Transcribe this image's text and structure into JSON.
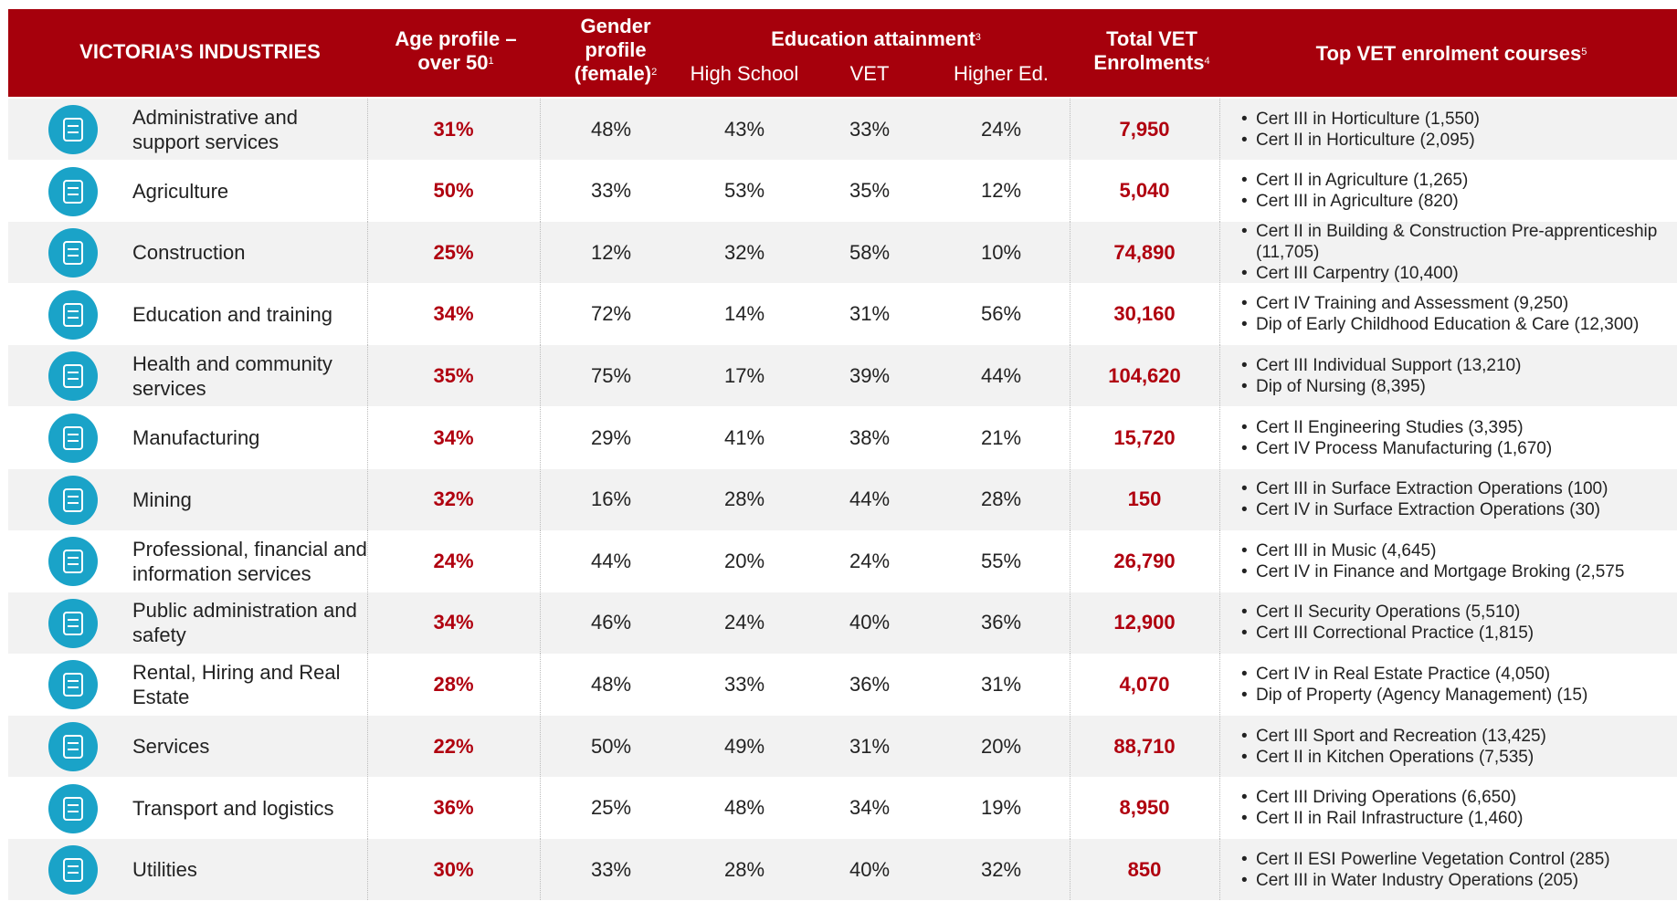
{
  "header": {
    "industries": "VICTORIA’S INDUSTRIES",
    "age": "Age profile – over 50",
    "age_note": "1",
    "gender": "Gender profile (female)",
    "gender_note": "2",
    "education": "Education attainment",
    "education_note": "3",
    "high_school": "High School",
    "vet": "VET",
    "higher_ed": "Higher Ed.",
    "total": "Total VET Enrolments",
    "total_note": "4",
    "courses": "Top VET enrolment courses",
    "courses_note": "5"
  },
  "rows": [
    {
      "industry": "Administrative and support services",
      "age": "31%",
      "gender": "48%",
      "high_school": "43%",
      "vet": "33%",
      "higher_ed": "24%",
      "total": "7,950",
      "courses": [
        "Cert III in Horticulture (1,550)",
        "Cert II in Horticulture (2,095)"
      ]
    },
    {
      "industry": "Agriculture",
      "age": "50%",
      "gender": "33%",
      "high_school": "53%",
      "vet": "35%",
      "higher_ed": "12%",
      "total": "5,040",
      "courses": [
        "Cert II in Agriculture (1,265)",
        "Cert III in Agriculture (820)"
      ]
    },
    {
      "industry": "Construction",
      "age": "25%",
      "gender": "12%",
      "high_school": "32%",
      "vet": "58%",
      "higher_ed": "10%",
      "total": "74,890",
      "courses": [
        "Cert II in Building & Construction Pre-apprenticeship (11,705)",
        "Cert III Carpentry (10,400)"
      ]
    },
    {
      "industry": "Education and training",
      "age": "34%",
      "gender": "72%",
      "high_school": "14%",
      "vet": "31%",
      "higher_ed": "56%",
      "total": "30,160",
      "courses": [
        "Cert IV Training and Assessment (9,250)",
        "Dip of Early Childhood Education & Care (12,300)"
      ]
    },
    {
      "industry": "Health and community services",
      "age": "35%",
      "gender": "75%",
      "high_school": "17%",
      "vet": "39%",
      "higher_ed": "44%",
      "total": "104,620",
      "courses": [
        "Cert III Individual Support (13,210)",
        "Dip of Nursing (8,395)"
      ]
    },
    {
      "industry": "Manufacturing",
      "age": "34%",
      "gender": "29%",
      "high_school": "41%",
      "vet": "38%",
      "higher_ed": "21%",
      "total": "15,720",
      "courses": [
        "Cert II Engineering Studies (3,395)",
        "Cert IV Process Manufacturing (1,670)"
      ]
    },
    {
      "industry": "Mining",
      "age": "32%",
      "gender": "16%",
      "high_school": "28%",
      "vet": "44%",
      "higher_ed": "28%",
      "total": "150",
      "courses": [
        "Cert III in Surface Extraction Operations (100)",
        "Cert IV in Surface Extraction Operations (30)"
      ]
    },
    {
      "industry": "Professional, financial and information services",
      "age": "24%",
      "gender": "44%",
      "high_school": "20%",
      "vet": "24%",
      "higher_ed": "55%",
      "total": "26,790",
      "courses": [
        "Cert III in Music (4,645)",
        "Cert IV in Finance and Mortgage Broking (2,575"
      ]
    },
    {
      "industry": "Public administration and safety",
      "age": "34%",
      "gender": "46%",
      "high_school": "24%",
      "vet": "40%",
      "higher_ed": "36%",
      "total": "12,900",
      "courses": [
        "Cert II Security Operations (5,510)",
        "Cert III Correctional Practice (1,815)"
      ]
    },
    {
      "industry": "Rental, Hiring and Real Estate",
      "age": "28%",
      "gender": "48%",
      "high_school": "33%",
      "vet": "36%",
      "higher_ed": "31%",
      "total": "4,070",
      "courses": [
        "Cert IV in Real Estate Practice (4,050)",
        "Dip of Property (Agency Management) (15)"
      ]
    },
    {
      "industry": "Services",
      "age": "22%",
      "gender": "50%",
      "high_school": "49%",
      "vet": "31%",
      "higher_ed": "20%",
      "total": "88,710",
      "courses": [
        "Cert III Sport and Recreation (13,425)",
        "Cert II in Kitchen Operations (7,535)"
      ]
    },
    {
      "industry": "Transport and logistics",
      "age": "36%",
      "gender": "25%",
      "high_school": "48%",
      "vet": "34%",
      "higher_ed": "19%",
      "total": "8,950",
      "courses": [
        "Cert III Driving Operations (6,650)",
        "Cert II in Rail Infrastructure (1,460)"
      ]
    },
    {
      "industry": "Utilities",
      "age": "30%",
      "gender": "33%",
      "high_school": "28%",
      "vet": "40%",
      "higher_ed": "32%",
      "total": "850",
      "courses": [
        "Cert II ESI Powerline Vegetation Control (285)",
        "Cert III in Water Industry Operations (205)"
      ]
    }
  ]
}
